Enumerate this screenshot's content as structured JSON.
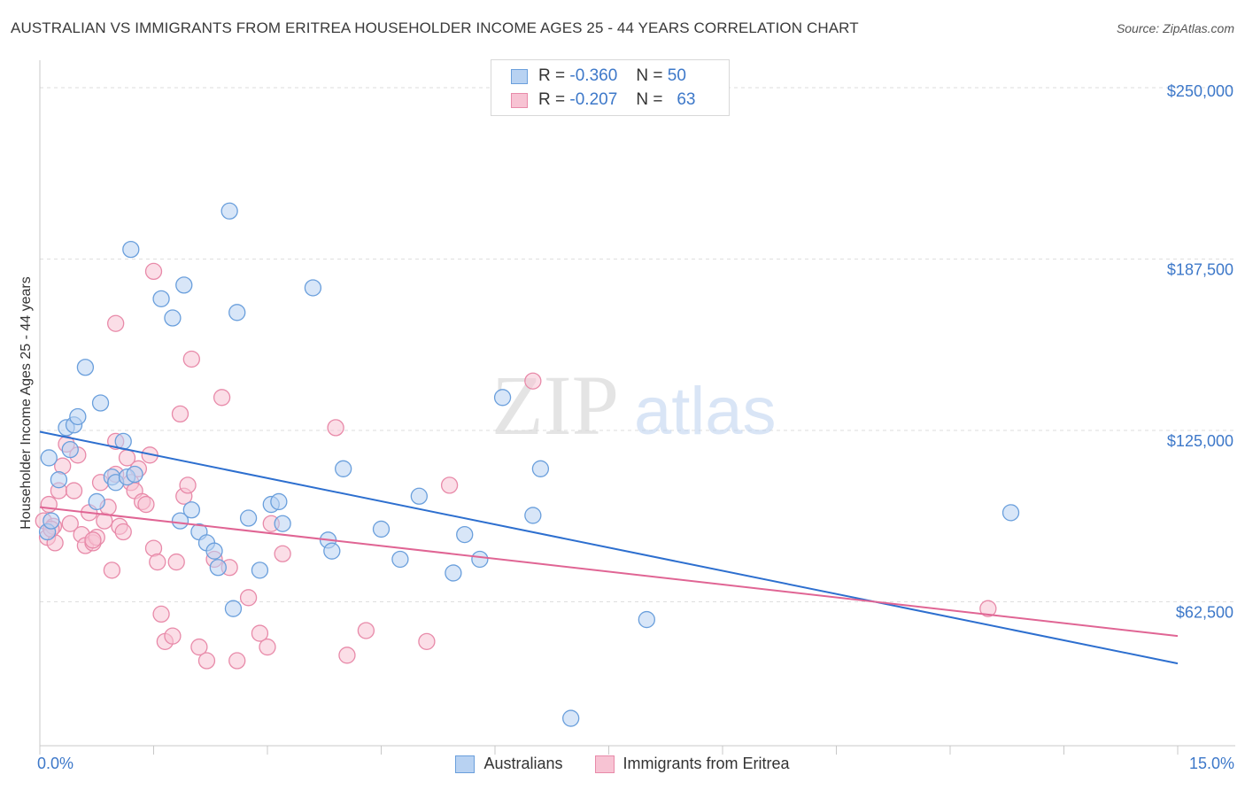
{
  "header": {
    "title": "AUSTRALIAN VS IMMIGRANTS FROM ERITREA HOUSEHOLDER INCOME AGES 25 - 44 YEARS CORRELATION CHART",
    "source": "Source: ZipAtlas.com"
  },
  "watermark": {
    "zip": "ZIP",
    "atlas": "atlas"
  },
  "legend": {
    "rows": [
      {
        "r_label": "R =",
        "r_value": "-0.360",
        "n_label": "N =",
        "n_value": "50"
      },
      {
        "r_label": "R =",
        "r_value": "-0.207",
        "n_label": "N =",
        "n_value": "63"
      }
    ]
  },
  "bottom_legend": {
    "series1": "Australians",
    "series2": "Immigrants from Eritrea"
  },
  "colors": {
    "series1_fill": "#b8d2f2",
    "series1_stroke": "#6a9fdc",
    "series1_line": "#2d6fcf",
    "series2_fill": "#f7c3d3",
    "series2_stroke": "#e88aa9",
    "series2_line": "#e06594",
    "tick": "#3d78c9",
    "grid": "#dedede"
  },
  "chart_data": {
    "type": "scatter",
    "title": "AUSTRALIAN VS IMMIGRANTS FROM ERITREA HOUSEHOLDER INCOME AGES 25 - 44 YEARS CORRELATION CHART",
    "xlabel": "",
    "ylabel": "Householder Income Ages 25 - 44 years",
    "xlim": [
      0,
      15
    ],
    "ylim": [
      10000,
      260000
    ],
    "x_tick_labels": [
      "0.0%",
      "15.0%"
    ],
    "y_ticks": [
      62500,
      125000,
      187500,
      250000
    ],
    "y_tick_labels": [
      "$62,500",
      "$125,000",
      "$187,500",
      "$250,000"
    ],
    "series": [
      {
        "name": "Australians",
        "r": -0.36,
        "n": 50,
        "trend": {
          "x": [
            0,
            15
          ],
          "y": [
            124500,
            40000
          ]
        },
        "points": [
          [
            0.1,
            88000
          ],
          [
            0.15,
            92000
          ],
          [
            0.12,
            115000
          ],
          [
            0.25,
            107000
          ],
          [
            0.35,
            126000
          ],
          [
            0.45,
            127000
          ],
          [
            0.4,
            118000
          ],
          [
            0.5,
            130000
          ],
          [
            0.6,
            148000
          ],
          [
            0.8,
            135000
          ],
          [
            0.75,
            99000
          ],
          [
            0.95,
            108000
          ],
          [
            1.0,
            106000
          ],
          [
            1.15,
            108000
          ],
          [
            1.1,
            121000
          ],
          [
            1.25,
            109000
          ],
          [
            1.2,
            191000
          ],
          [
            1.6,
            173000
          ],
          [
            1.75,
            166000
          ],
          [
            1.9,
            178000
          ],
          [
            1.85,
            92000
          ],
          [
            2.0,
            96000
          ],
          [
            2.1,
            88000
          ],
          [
            2.2,
            84000
          ],
          [
            2.3,
            81000
          ],
          [
            2.35,
            75000
          ],
          [
            2.5,
            205000
          ],
          [
            2.55,
            60000
          ],
          [
            2.6,
            168000
          ],
          [
            2.75,
            93000
          ],
          [
            2.9,
            74000
          ],
          [
            3.05,
            98000
          ],
          [
            3.15,
            99000
          ],
          [
            3.2,
            91000
          ],
          [
            3.6,
            177000
          ],
          [
            3.8,
            85000
          ],
          [
            3.85,
            81000
          ],
          [
            4.0,
            111000
          ],
          [
            4.5,
            89000
          ],
          [
            4.75,
            78000
          ],
          [
            5.0,
            101000
          ],
          [
            5.45,
            73000
          ],
          [
            5.6,
            87000
          ],
          [
            5.8,
            78000
          ],
          [
            6.1,
            137000
          ],
          [
            6.5,
            94000
          ],
          [
            6.6,
            111000
          ],
          [
            7.0,
            20000
          ],
          [
            8.0,
            56000
          ],
          [
            12.8,
            95000
          ]
        ]
      },
      {
        "name": "Immigrants from Eritrea",
        "r": -0.207,
        "n": 63,
        "trend": {
          "x": [
            0,
            15
          ],
          "y": [
            97000,
            50000
          ]
        },
        "points": [
          [
            0.05,
            92000
          ],
          [
            0.1,
            86000
          ],
          [
            0.12,
            98000
          ],
          [
            0.18,
            90000
          ],
          [
            0.2,
            84000
          ],
          [
            0.25,
            103000
          ],
          [
            0.3,
            112000
          ],
          [
            0.35,
            120000
          ],
          [
            0.4,
            91000
          ],
          [
            0.5,
            116000
          ],
          [
            0.55,
            87000
          ],
          [
            0.6,
            83000
          ],
          [
            0.65,
            95000
          ],
          [
            0.7,
            84000
          ],
          [
            0.75,
            86000
          ],
          [
            0.8,
            106000
          ],
          [
            0.85,
            92000
          ],
          [
            0.9,
            97000
          ],
          [
            0.95,
            74000
          ],
          [
            1.0,
            109000
          ],
          [
            1.05,
            90000
          ],
          [
            1.1,
            88000
          ],
          [
            1.15,
            115000
          ],
          [
            1.2,
            106000
          ],
          [
            1.25,
            103000
          ],
          [
            1.3,
            111000
          ],
          [
            1.35,
            99000
          ],
          [
            1.4,
            98000
          ],
          [
            1.45,
            116000
          ],
          [
            1.5,
            82000
          ],
          [
            1.55,
            77000
          ],
          [
            1.6,
            58000
          ],
          [
            1.65,
            48000
          ],
          [
            1.75,
            50000
          ],
          [
            1.8,
            77000
          ],
          [
            1.85,
            131000
          ],
          [
            1.9,
            101000
          ],
          [
            1.95,
            105000
          ],
          [
            2.0,
            151000
          ],
          [
            2.1,
            46000
          ],
          [
            2.2,
            41000
          ],
          [
            2.3,
            78000
          ],
          [
            2.4,
            137000
          ],
          [
            2.5,
            75000
          ],
          [
            2.6,
            41000
          ],
          [
            2.75,
            64000
          ],
          [
            2.9,
            51000
          ],
          [
            3.0,
            46000
          ],
          [
            3.05,
            91000
          ],
          [
            3.2,
            80000
          ],
          [
            3.9,
            126000
          ],
          [
            4.05,
            43000
          ],
          [
            4.3,
            52000
          ],
          [
            5.1,
            48000
          ],
          [
            5.4,
            105000
          ],
          [
            6.5,
            143000
          ],
          [
            1.5,
            183000
          ],
          [
            1.0,
            164000
          ],
          [
            1.0,
            121000
          ],
          [
            0.45,
            103000
          ],
          [
            0.7,
            85000
          ],
          [
            12.5,
            60000
          ],
          [
            0.15,
            89000
          ]
        ]
      }
    ]
  }
}
